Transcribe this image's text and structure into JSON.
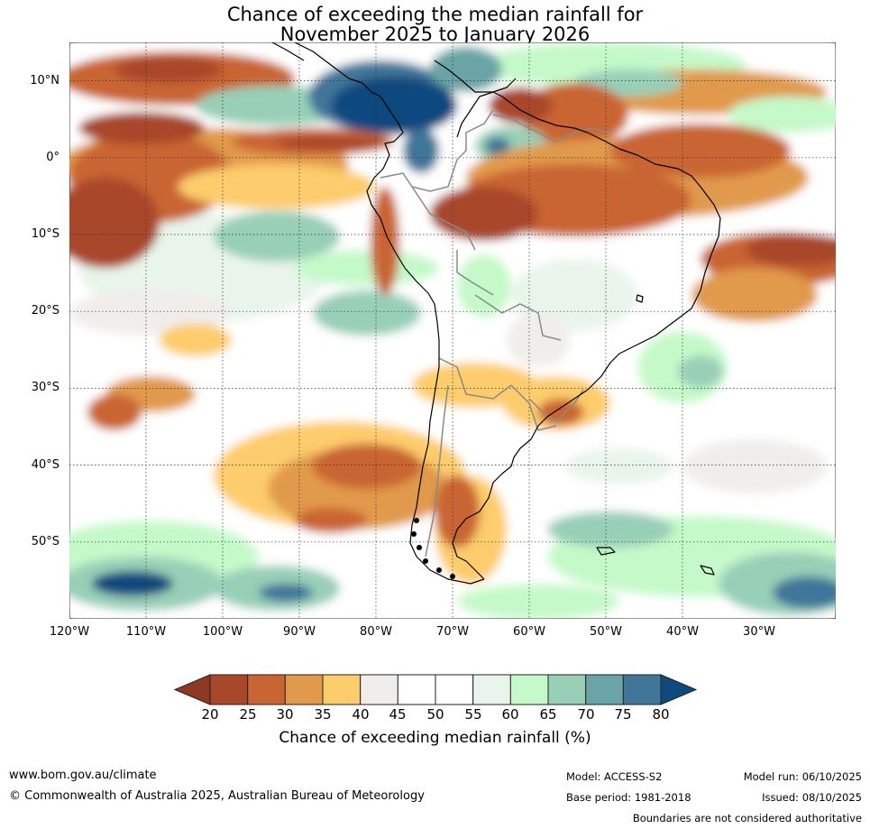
{
  "title": {
    "line1": "Chance of exceeding the median rainfall for",
    "line2": "November 2025 to January 2026"
  },
  "axes": {
    "lat_labels": [
      "10°N",
      "0°",
      "10°S",
      "20°S",
      "30°S",
      "40°S",
      "50°S"
    ],
    "lon_labels": [
      "120°W",
      "110°W",
      "100°W",
      "90°W",
      "80°W",
      "70°W",
      "60°W",
      "50°W",
      "40°W",
      "30°W"
    ],
    "lat_values": [
      10,
      0,
      -10,
      -20,
      -30,
      -40,
      -50
    ],
    "lon_values": [
      -120,
      -110,
      -100,
      -90,
      -80,
      -70,
      -60,
      -50,
      -40,
      -30
    ],
    "lat_range": [
      -60,
      15
    ],
    "lon_range": [
      -120,
      -20
    ]
  },
  "legend": {
    "title": "Chance of exceeding median rainfall (%)",
    "ticks": [
      "20",
      "25",
      "30",
      "35",
      "40",
      "45",
      "50",
      "55",
      "60",
      "65",
      "70",
      "75",
      "80"
    ],
    "under_color": "#8e3a22",
    "over_color": "#0e4a7e",
    "bins": [
      {
        "range": "20-25",
        "color": "#a9472a"
      },
      {
        "range": "25-30",
        "color": "#c96532"
      },
      {
        "range": "30-35",
        "color": "#e19a4b"
      },
      {
        "range": "35-40",
        "color": "#fdcc6c"
      },
      {
        "range": "40-45",
        "color": "#f1edea"
      },
      {
        "range": "45-50",
        "color": "#ffffff"
      },
      {
        "range": "50-55",
        "color": "#ffffff"
      },
      {
        "range": "55-60",
        "color": "#e9f5ea"
      },
      {
        "range": "60-65",
        "color": "#c5f9c9"
      },
      {
        "range": "65-70",
        "color": "#98cfb7"
      },
      {
        "range": "70-75",
        "color": "#6ba4a6"
      },
      {
        "range": "75-80",
        "color": "#417699"
      }
    ]
  },
  "footer": {
    "url": "www.bom.gov.au/climate",
    "copyright": "© Commonwealth of Australia 2025, Australian Bureau of Meteorology",
    "model": "Model: ACCESS-S2",
    "base_period": "Base period: 1981-2018",
    "model_run": "Model run: 06/10/2025",
    "issued": "Issued: 08/10/2025",
    "disclaimer": "Boundaries are not considered authoritative"
  }
}
